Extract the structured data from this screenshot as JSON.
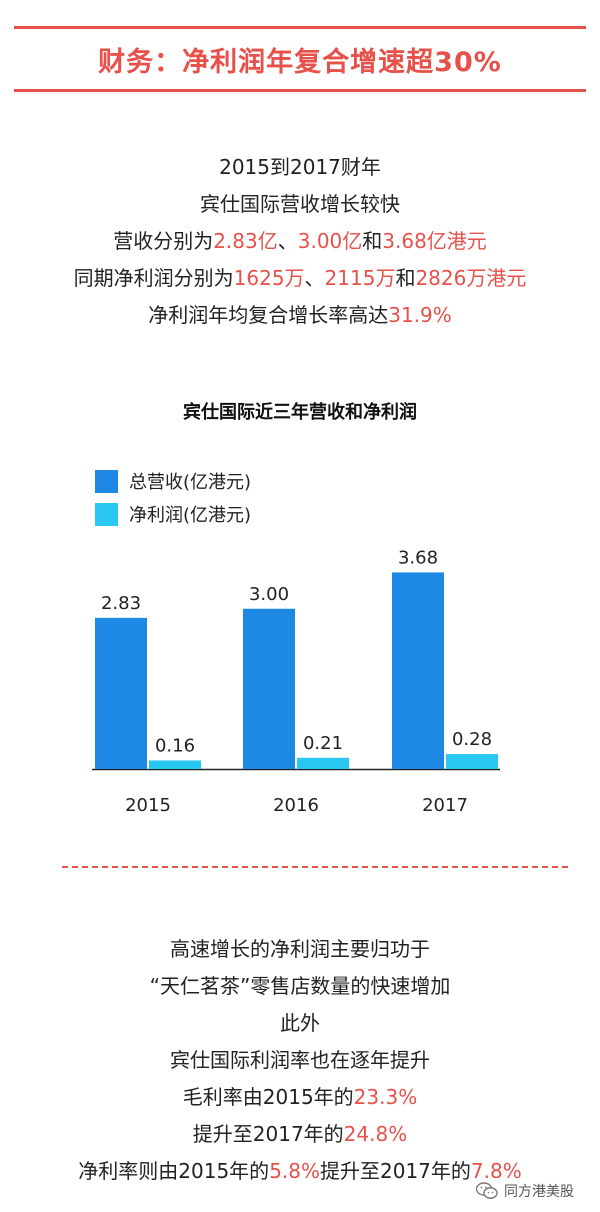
{
  "header": {
    "title": "财务：净利润年复合增速超30%"
  },
  "intro": {
    "lines": [
      [
        {
          "t": "2015到2017财年"
        }
      ],
      [
        {
          "t": "宾仕国际营收增长较快"
        }
      ],
      [
        {
          "t": "营收分别为"
        },
        {
          "t": "2.83亿",
          "hl": true
        },
        {
          "t": "、"
        },
        {
          "t": "3.00亿",
          "hl": true
        },
        {
          "t": "和"
        },
        {
          "t": "3.68亿港元",
          "hl": true
        }
      ],
      [
        {
          "t": "同期净利润分别为"
        },
        {
          "t": "1625万",
          "hl": true
        },
        {
          "t": "、"
        },
        {
          "t": "2115万",
          "hl": true
        },
        {
          "t": "和"
        },
        {
          "t": "2826万港元",
          "hl": true
        }
      ],
      [
        {
          "t": "净利润年均复合增长率高达"
        },
        {
          "t": "31.9%",
          "hl": true
        }
      ]
    ]
  },
  "outro": {
    "lines": [
      [
        {
          "t": "高速增长的净利润主要归功于"
        }
      ],
      [
        {
          "t": "“天仁茗茶”零售店数量的快速增加"
        }
      ],
      [
        {
          "t": "此外"
        }
      ],
      [
        {
          "t": "宾仕国际利润率也在逐年提升"
        }
      ],
      [
        {
          "t": "毛利率由2015年的"
        },
        {
          "t": "23.3%",
          "hl": true
        }
      ],
      [
        {
          "t": "提升至2017年的"
        },
        {
          "t": "24.8%",
          "hl": true
        }
      ],
      [
        {
          "t": "净利率则由2015年的"
        },
        {
          "t": "5.8%",
          "hl": true
        },
        {
          "t": "提升至2017年的"
        },
        {
          "t": "7.8%",
          "hl": true
        }
      ]
    ]
  },
  "chart_data": {
    "type": "bar",
    "title": "宾仕国际近三年营收和净利润",
    "categories": [
      "2015",
      "2016",
      "2017"
    ],
    "series": [
      {
        "name": "总营收(亿港元)",
        "values": [
          2.83,
          3.0,
          3.68
        ],
        "color": "#1e88e5"
      },
      {
        "name": "净利润(亿港元)",
        "values": [
          0.16,
          0.21,
          0.28
        ],
        "color": "#29c8f2"
      }
    ],
    "value_labels": [
      [
        "2.83",
        "3.00",
        "3.68"
      ],
      [
        "0.16",
        "0.21",
        "0.28"
      ]
    ],
    "ylim": [
      0,
      4.1
    ],
    "grid": false,
    "legend_position": "top-left"
  },
  "watermark": {
    "text": "同方港美股",
    "icon": "wechat-icon"
  }
}
